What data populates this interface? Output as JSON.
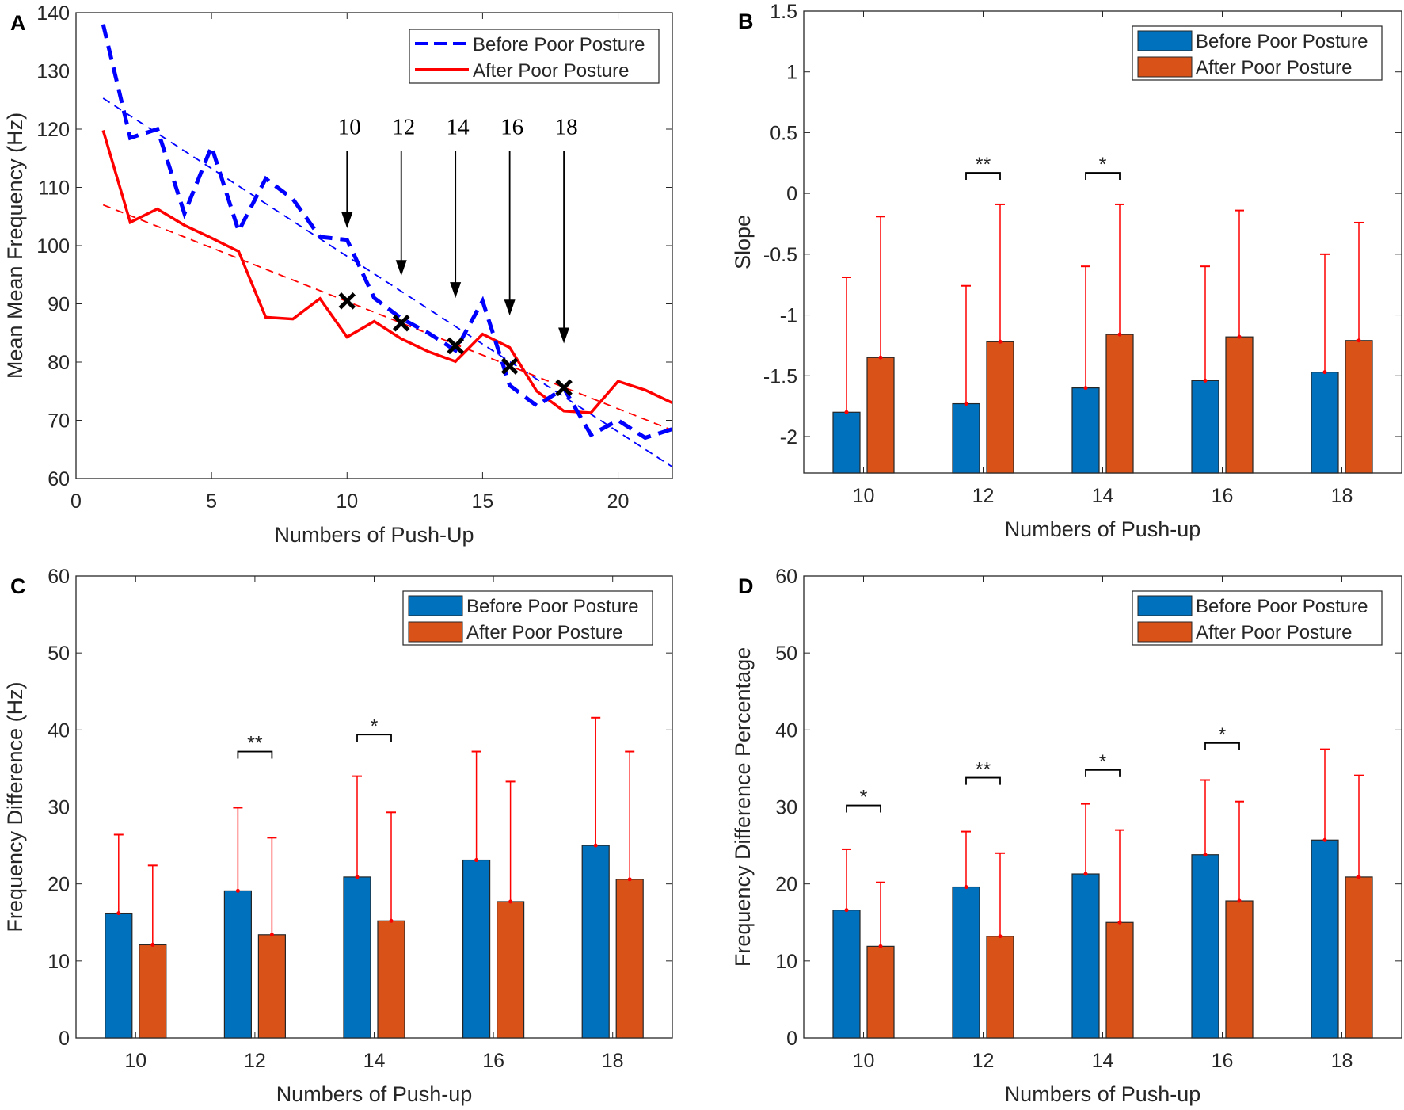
{
  "chart_data": [
    {
      "panel": "A",
      "type": "line",
      "xlabel": "Numbers of Push-Up",
      "ylabel": "Mean Mean Frequency (Hz)",
      "xlim": [
        0,
        22
      ],
      "ylim": [
        60,
        140
      ],
      "xticks": [
        0,
        5,
        10,
        15,
        20
      ],
      "yticks": [
        60,
        70,
        80,
        90,
        100,
        110,
        120,
        130,
        140
      ],
      "legend_position": "top-right",
      "x": [
        1,
        2,
        3,
        4,
        5,
        6,
        7,
        8,
        9,
        10,
        11,
        12,
        13,
        14,
        15,
        16,
        17,
        18,
        19,
        20,
        21,
        22
      ],
      "series": [
        {
          "name": "Before Poor Posture",
          "color": "#0000ff",
          "style": "dashed",
          "values": [
            138,
            118.5,
            120,
            105.5,
            117,
            102.5,
            111.5,
            108,
            101.5,
            101,
            91,
            87.5,
            85,
            82,
            90.5,
            76,
            72.5,
            75.5,
            67.5,
            70,
            67,
            68.5
          ],
          "trend": [
            [
              1,
              125.3
            ],
            [
              22,
              62
            ]
          ]
        },
        {
          "name": "After Poor Posture",
          "color": "#ff0000",
          "style": "solid",
          "values": [
            119.8,
            104,
            106.3,
            103.5,
            101.3,
            99,
            87.7,
            87.4,
            90.9,
            84.3,
            87,
            84,
            81.8,
            80.1,
            84.8,
            82.5,
            75,
            71.6,
            71.3,
            76.7,
            75.2,
            73
          ],
          "trend": [
            [
              1,
              107
            ],
            [
              22,
              68.3
            ]
          ]
        }
      ],
      "markers": [
        [
          10,
          90.5
        ],
        [
          12,
          86.7
        ],
        [
          14,
          82.8
        ],
        [
          16,
          79.3
        ],
        [
          18,
          75.6
        ]
      ],
      "annotations": [
        {
          "label": "10",
          "x": 10,
          "tip": 103
        },
        {
          "label": "12",
          "x": 12,
          "tip": 94.8
        },
        {
          "label": "14",
          "x": 14,
          "tip": 91
        },
        {
          "label": "16",
          "x": 16,
          "tip": 88
        },
        {
          "label": "18",
          "x": 18,
          "tip": 83.2
        }
      ]
    },
    {
      "panel": "B",
      "type": "bar",
      "xlabel": "Numbers of Push-up",
      "ylabel": "Slope",
      "categories": [
        "10",
        "12",
        "14",
        "16",
        "18"
      ],
      "ylim": [
        -2.3,
        1.5
      ],
      "yticks": [
        -2,
        -1.5,
        -1,
        -0.5,
        0,
        0.5,
        1,
        1.5
      ],
      "legend_position": "top-right",
      "series": [
        {
          "name": "Before Poor Posture",
          "color": "#0072bd",
          "values": [
            -1.8,
            -1.73,
            -1.6,
            -1.54,
            -1.47
          ],
          "err_upper": [
            -0.69,
            -0.76,
            -0.6,
            -0.6,
            -0.5
          ]
        },
        {
          "name": "After Poor Posture",
          "color": "#d95319",
          "values": [
            -1.35,
            -1.22,
            -1.16,
            -1.18,
            -1.21
          ],
          "err_upper": [
            -0.19,
            -0.09,
            -0.09,
            -0.14,
            -0.24
          ]
        }
      ],
      "significance": [
        {
          "category": "12",
          "label": "**",
          "y": 0.17
        },
        {
          "category": "14",
          "label": "*",
          "y": 0.17
        }
      ]
    },
    {
      "panel": "C",
      "type": "bar",
      "xlabel": "Numbers of Push-up",
      "ylabel": "Frequency Difference (Hz)",
      "categories": [
        "10",
        "12",
        "14",
        "16",
        "18"
      ],
      "ylim": [
        0,
        60
      ],
      "yticks": [
        0,
        10,
        20,
        30,
        40,
        50,
        60
      ],
      "legend_position": "top-right",
      "series": [
        {
          "name": "Before Poor Posture",
          "color": "#0072bd",
          "values": [
            16.2,
            19.1,
            20.9,
            23.1,
            25.0
          ],
          "err_upper": [
            26.4,
            29.9,
            34.0,
            37.2,
            41.6
          ]
        },
        {
          "name": "After Poor Posture",
          "color": "#d95319",
          "values": [
            12.1,
            13.4,
            15.2,
            17.7,
            20.6
          ],
          "err_upper": [
            22.4,
            26.0,
            29.3,
            33.3,
            37.2
          ]
        }
      ],
      "significance": [
        {
          "category": "12",
          "label": "**",
          "y": 37.2
        },
        {
          "category": "14",
          "label": "*",
          "y": 39.4
        }
      ]
    },
    {
      "panel": "D",
      "type": "bar",
      "xlabel": "Numbers of Push-up",
      "ylabel": "Frequency Difference Percentage",
      "categories": [
        "10",
        "12",
        "14",
        "16",
        "18"
      ],
      "ylim": [
        0,
        60
      ],
      "yticks": [
        0,
        10,
        20,
        30,
        40,
        50,
        60
      ],
      "legend_position": "top-right",
      "series": [
        {
          "name": "Before Poor Posture",
          "color": "#0072bd",
          "values": [
            16.6,
            19.6,
            21.3,
            23.8,
            25.7
          ],
          "err_upper": [
            24.5,
            26.8,
            30.4,
            33.5,
            37.5
          ]
        },
        {
          "name": "After Poor Posture",
          "color": "#d95319",
          "values": [
            11.9,
            13.2,
            15.0,
            17.8,
            20.9
          ],
          "err_upper": [
            20.2,
            24.0,
            27.0,
            30.7,
            34.1
          ]
        }
      ],
      "significance": [
        {
          "category": "10",
          "label": "*",
          "y": 30.2
        },
        {
          "category": "12",
          "label": "**",
          "y": 33.8
        },
        {
          "category": "14",
          "label": "*",
          "y": 34.8
        },
        {
          "category": "16",
          "label": "*",
          "y": 38.3
        }
      ]
    }
  ],
  "error_bar_color": "#ff0000"
}
